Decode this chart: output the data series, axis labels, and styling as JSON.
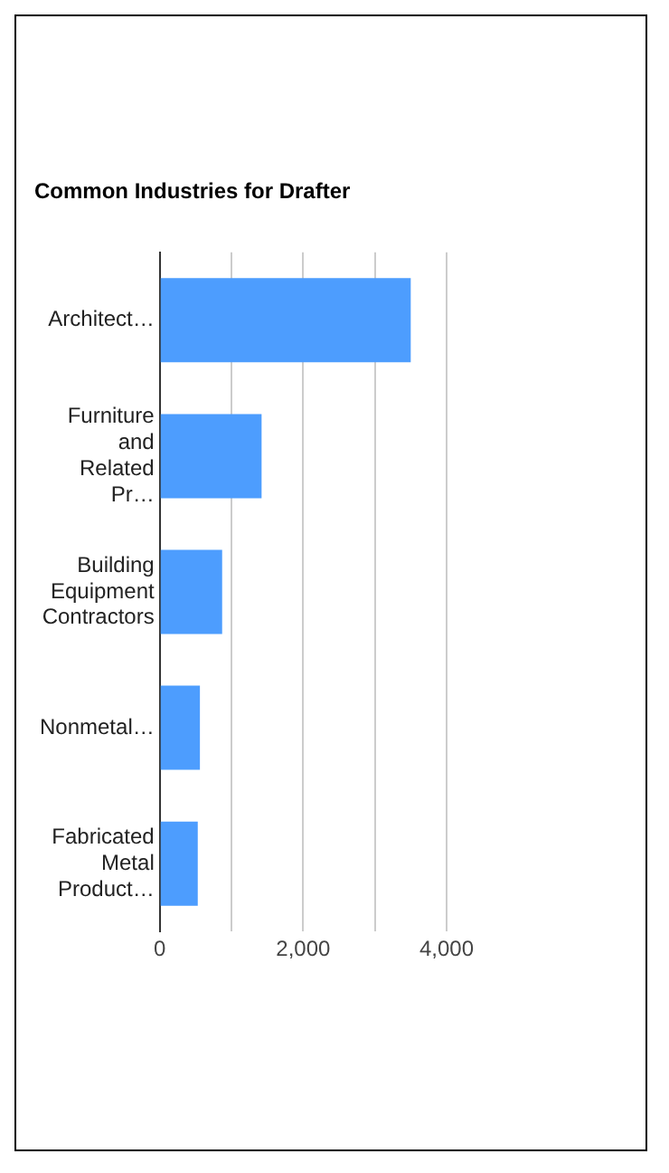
{
  "chart_data": {
    "type": "bar",
    "orientation": "horizontal",
    "title": "Common Industries for Drafter",
    "categories": [
      "Architect…",
      "Furniture and Related Pr…",
      "Building Equipment Contractors",
      "Nonmetal…",
      "Fabricated Metal Product…"
    ],
    "values": [
      3500,
      1420,
      870,
      560,
      530
    ],
    "color": "#4d9dfe",
    "xlim": [
      0,
      4000
    ],
    "xticks": [
      0,
      {
        "value": 1000,
        "label": null
      },
      "2,000",
      {
        "value": 3000,
        "label": null
      },
      {
        "value": 4000,
        "label": "4,000"
      }
    ],
    "grid": "x",
    "legend": false
  }
}
